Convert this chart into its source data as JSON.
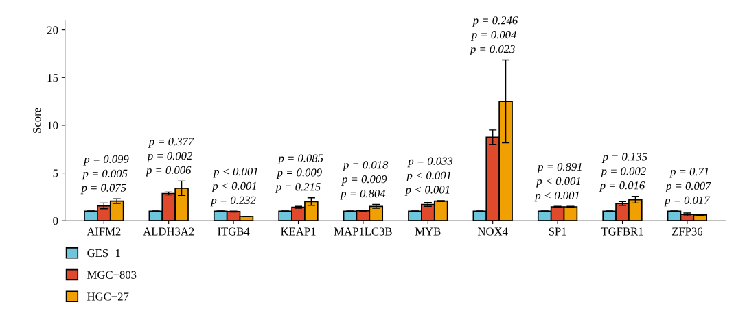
{
  "chart_data": {
    "type": "bar",
    "ylabel": "Score",
    "categories": [
      "AIFM2",
      "ALDH3A2",
      "ITGB4",
      "KEAP1",
      "MAP1LC3B",
      "MYB",
      "NOX4",
      "SP1",
      "TGFBR1",
      "ZFP36"
    ],
    "series": [
      {
        "name": "GES−1",
        "color": "#6ec6dc",
        "values": [
          1,
          1,
          1,
          1,
          1,
          1,
          1,
          1,
          1,
          1
        ],
        "errors": [
          null,
          null,
          null,
          null,
          null,
          null,
          null,
          null,
          null,
          null
        ]
      },
      {
        "name": "MGC−803",
        "color": "#e04a2c",
        "values": [
          1.55,
          2.85,
          0.95,
          1.4,
          1.05,
          1.7,
          8.75,
          1.45,
          1.8,
          0.65
        ],
        "errors": [
          0.3,
          0.15,
          0.05,
          0.1,
          0.05,
          0.2,
          0.75,
          0.05,
          0.2,
          0.15
        ]
      },
      {
        "name": "HGC−27",
        "color": "#f0a000",
        "values": [
          2.05,
          3.4,
          0.45,
          2.0,
          1.5,
          2.05,
          12.5,
          1.45,
          2.2,
          0.6
        ],
        "errors": [
          0.25,
          0.75,
          0.02,
          0.4,
          0.2,
          0.05,
          4.35,
          0.05,
          0.35,
          0.05
        ]
      }
    ],
    "ylim": [
      0,
      21
    ],
    "yticks": [
      0,
      5,
      10,
      15,
      20
    ],
    "grid": false,
    "legend": "bottom left",
    "annotations": [
      "p = 0.099",
      "p = 0.005",
      "p = 0.075",
      "p = 0.377",
      "p = 0.002",
      "p = 0.006",
      "p < 0.001",
      "p < 0.001",
      "p = 0.232",
      "p = 0.085",
      "p = 0.009",
      "p = 0.215",
      "p = 0.018",
      "p = 0.009",
      "p = 0.804",
      "p = 0.033",
      "p < 0.001",
      "p < 0.001",
      "p = 0.246",
      "p = 0.004",
      "p = 0.023",
      "p = 0.891",
      "p < 0.001",
      "p < 0.001",
      "p = 0.135",
      "p = 0.002",
      "p = 0.016",
      "p = 0.71",
      "p = 0.007",
      "p = 0.017"
    ]
  }
}
